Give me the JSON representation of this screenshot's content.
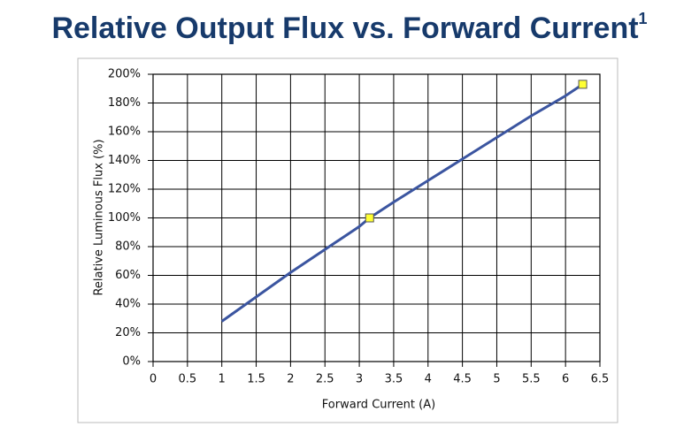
{
  "chart_data": {
    "type": "line",
    "title": "Relative Output Flux vs. Forward Current",
    "title_superscript": "1",
    "x_label": "Forward Current (A)",
    "y_label": "Relative Luminous Flux (%)",
    "x": [
      1,
      1.5,
      2,
      2.5,
      3,
      3.15,
      3.5,
      4,
      4.5,
      5,
      5.5,
      6,
      6.25
    ],
    "values": [
      28,
      45,
      62,
      78,
      94,
      100,
      111,
      126,
      141,
      156,
      171,
      185,
      193
    ],
    "color": "#3b55a0",
    "marker_x": [
      3.15,
      6.25
    ],
    "marker_values": [
      100,
      193
    ],
    "marker_color": "#ffff33",
    "xlim": [
      0,
      6.5
    ],
    "xticks": [
      0,
      0.5,
      1,
      1.5,
      2,
      2.5,
      3,
      3.5,
      4,
      4.5,
      5,
      5.5,
      6,
      6.5
    ],
    "ylim": [
      0,
      200
    ],
    "yticks": [
      {
        "value": 0,
        "label": "0%"
      },
      {
        "value": 20,
        "label": "20%"
      },
      {
        "value": 40,
        "label": "40%"
      },
      {
        "value": 60,
        "label": "60%"
      },
      {
        "value": 80,
        "label": "80%"
      },
      {
        "value": 100,
        "label": "100%"
      },
      {
        "value": 120,
        "label": "120%"
      },
      {
        "value": 140,
        "label": "140%"
      },
      {
        "value": 160,
        "label": "160%"
      },
      {
        "value": 180,
        "label": "180%"
      },
      {
        "value": 200,
        "label": "200%"
      }
    ],
    "grid": true
  }
}
